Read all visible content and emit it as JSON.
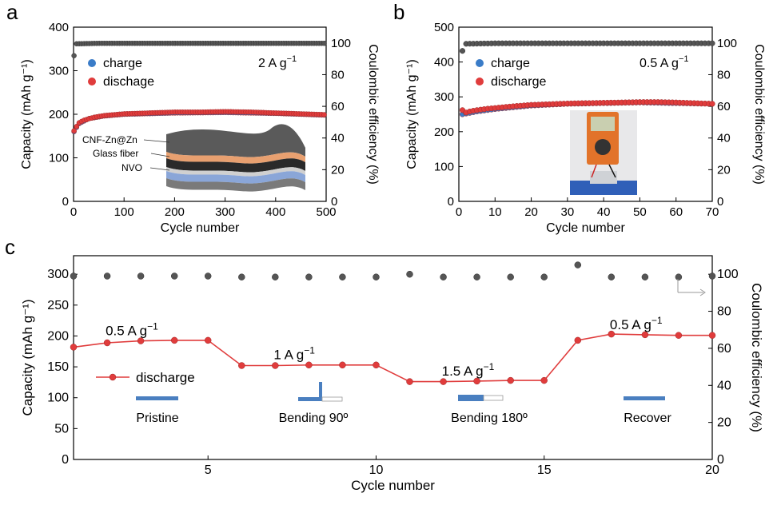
{
  "panels": [
    {
      "id": "a",
      "letter": "a"
    },
    {
      "id": "b",
      "letter": "b"
    },
    {
      "id": "c",
      "letter": "c"
    }
  ],
  "chart_data": [
    {
      "id": "a",
      "type": "scatter",
      "xlabel": "Cycle number",
      "ylabel": "Capacity (mAh g⁻¹)",
      "y2label": "Coulombic efficiency (%)",
      "xlim": [
        0,
        500
      ],
      "ylim": [
        0,
        400
      ],
      "y2lim": [
        0,
        110
      ],
      "xticks": [
        0,
        100,
        200,
        300,
        400,
        500
      ],
      "yticks": [
        0,
        100,
        200,
        300,
        400
      ],
      "y2ticks": [
        0,
        20,
        40,
        60,
        80,
        100
      ],
      "rate_label": "2 A g",
      "rate_exp": "−1",
      "legend": [
        {
          "label": "charge",
          "color": "#3a7cc8"
        },
        {
          "label": "dischage",
          "color": "#e03c3c"
        }
      ],
      "series": [
        {
          "name": "charge",
          "axis": "left",
          "color": "#3a7cc8",
          "points": [
            [
              1,
              160
            ],
            [
              10,
              178
            ],
            [
              30,
              190
            ],
            [
              60,
              196
            ],
            [
              100,
              200
            ],
            [
              200,
              203
            ],
            [
              300,
              204
            ],
            [
              400,
              202
            ],
            [
              500,
              198
            ]
          ]
        },
        {
          "name": "dischage",
          "axis": "left",
          "color": "#e03c3c",
          "points": [
            [
              1,
              162
            ],
            [
              10,
              180
            ],
            [
              20,
              186
            ],
            [
              40,
              193
            ],
            [
              60,
              197
            ],
            [
              100,
              201
            ],
            [
              150,
              203
            ],
            [
              200,
              205
            ],
            [
              250,
              205
            ],
            [
              300,
              206
            ],
            [
              350,
              205
            ],
            [
              400,
              203
            ],
            [
              450,
              201
            ],
            [
              500,
              199
            ]
          ]
        },
        {
          "name": "Coulombic efficiency",
          "axis": "right",
          "color": "#555555",
          "points": [
            [
              1,
              92
            ],
            [
              5,
              99.5
            ],
            [
              50,
              99.8
            ],
            [
              100,
              99.8
            ],
            [
              200,
              99.8
            ],
            [
              300,
              99.8
            ],
            [
              400,
              99.8
            ],
            [
              500,
              99.8
            ]
          ]
        }
      ],
      "inset_labels": [
        "CNF-Zn@Zn",
        "Glass fiber",
        "NVO"
      ]
    },
    {
      "id": "b",
      "type": "scatter",
      "xlabel": "Cycle number",
      "ylabel": "Capacity (mAh g⁻¹)",
      "y2label": "Coulombic efficiency (%)",
      "xlim": [
        0,
        70
      ],
      "ylim": [
        0,
        500
      ],
      "y2lim": [
        0,
        110
      ],
      "xticks": [
        0,
        10,
        20,
        30,
        40,
        50,
        60,
        70
      ],
      "yticks": [
        0,
        100,
        200,
        300,
        400,
        500
      ],
      "y2ticks": [
        0,
        20,
        40,
        60,
        80,
        100
      ],
      "rate_label": "0.5 A g",
      "rate_exp": "−1",
      "legend": [
        {
          "label": "charge",
          "color": "#3a7cc8"
        },
        {
          "label": "discharge",
          "color": "#e03c3c"
        }
      ],
      "series": [
        {
          "name": "charge",
          "axis": "left",
          "color": "#3a7cc8",
          "points": [
            [
              1,
              250
            ],
            [
              2,
              252
            ],
            [
              5,
              258
            ],
            [
              10,
              265
            ],
            [
              20,
              275
            ],
            [
              30,
              280
            ],
            [
              40,
              282
            ],
            [
              50,
              284
            ],
            [
              60,
              282
            ],
            [
              70,
              280
            ]
          ]
        },
        {
          "name": "discharge",
          "axis": "left",
          "color": "#e03c3c",
          "points": [
            [
              1,
              262
            ],
            [
              2,
              255
            ],
            [
              3,
              258
            ],
            [
              5,
              262
            ],
            [
              8,
              266
            ],
            [
              10,
              268
            ],
            [
              15,
              273
            ],
            [
              20,
              277
            ],
            [
              25,
              279
            ],
            [
              30,
              281
            ],
            [
              35,
              282
            ],
            [
              40,
              283
            ],
            [
              45,
              284
            ],
            [
              50,
              285
            ],
            [
              55,
              285
            ],
            [
              60,
              284
            ],
            [
              65,
              282
            ],
            [
              70,
              280
            ]
          ]
        },
        {
          "name": "Coulombic efficiency",
          "axis": "right",
          "color": "#555555",
          "points": [
            [
              1,
              95
            ],
            [
              2,
              99.5
            ],
            [
              10,
              99.8
            ],
            [
              20,
              99.8
            ],
            [
              30,
              99.8
            ],
            [
              40,
              99.8
            ],
            [
              50,
              99.8
            ],
            [
              60,
              99.8
            ],
            [
              70,
              99.8
            ]
          ]
        }
      ]
    },
    {
      "id": "c",
      "type": "line",
      "xlabel": "Cycle number",
      "ylabel": "Capacity (mAh g⁻¹)",
      "y2label": "Coulombic efficiency (%)",
      "xlim": [
        1,
        20
      ],
      "ylim": [
        0,
        330
      ],
      "y2lim": [
        0,
        110
      ],
      "xticks": [
        5,
        10,
        15,
        20
      ],
      "yticks": [
        0,
        50,
        100,
        150,
        200,
        250,
        300
      ],
      "y2ticks": [
        0,
        20,
        40,
        60,
        80,
        100
      ],
      "legend": [
        {
          "label": "discharge",
          "color": "#e03c3c"
        }
      ],
      "series": [
        {
          "name": "discharge",
          "axis": "left",
          "color": "#e03c3c",
          "points": [
            [
              1,
              182
            ],
            [
              2,
              189
            ],
            [
              3,
              192
            ],
            [
              4,
              193
            ],
            [
              5,
              193
            ],
            [
              6,
              152
            ],
            [
              7,
              152
            ],
            [
              8,
              153
            ],
            [
              9,
              153
            ],
            [
              10,
              153
            ],
            [
              11,
              126
            ],
            [
              12,
              126
            ],
            [
              13,
              127
            ],
            [
              14,
              128
            ],
            [
              15,
              128
            ],
            [
              16,
              193
            ],
            [
              17,
              203
            ],
            [
              18,
              202
            ],
            [
              19,
              201
            ],
            [
              20,
              201
            ]
          ]
        },
        {
          "name": "Coulombic efficiency",
          "axis": "right",
          "color": "#555555",
          "points": [
            [
              1,
              99
            ],
            [
              2,
              99
            ],
            [
              3,
              99
            ],
            [
              4,
              99
            ],
            [
              5,
              99
            ],
            [
              6,
              98.5
            ],
            [
              7,
              98.5
            ],
            [
              8,
              98.5
            ],
            [
              9,
              98.5
            ],
            [
              10,
              98.5
            ],
            [
              11,
              100
            ],
            [
              12,
              98.5
            ],
            [
              13,
              98.5
            ],
            [
              14,
              98.5
            ],
            [
              15,
              98.5
            ],
            [
              16,
              105
            ],
            [
              17,
              98.5
            ],
            [
              18,
              98.5
            ],
            [
              19,
              98.5
            ],
            [
              20,
              99
            ]
          ]
        }
      ],
      "annotations": [
        {
          "rate": "0.5 A g",
          "exp": "−1",
          "x": 3,
          "y": 196,
          "state": "Pristine"
        },
        {
          "rate": "1 A g",
          "exp": "−1",
          "x": 8,
          "y": 157,
          "state": "Bending  90º"
        },
        {
          "rate": "1.5 A g",
          "exp": "−1",
          "x": 13,
          "y": 131,
          "state": "Bending  180º"
        },
        {
          "rate": "0.5 A g",
          "exp": "−1",
          "x": 18,
          "y": 206,
          "state": "Recover"
        }
      ]
    }
  ]
}
